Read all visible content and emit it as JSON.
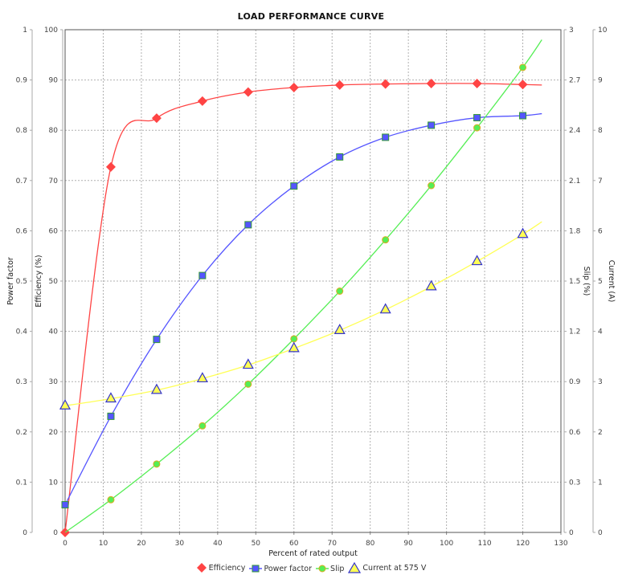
{
  "chart_data": {
    "type": "line",
    "title": "LOAD PERFORMANCE CURVE",
    "xlabel": "Percent of rated output",
    "xlim": [
      0,
      130
    ],
    "xticks": [
      0,
      10,
      20,
      30,
      40,
      50,
      60,
      70,
      80,
      90,
      100,
      110,
      120,
      130
    ],
    "grid": true,
    "legend_position": "bottom",
    "axes": {
      "power_factor": {
        "label": "Power factor",
        "side": "left-outer",
        "range": [
          0,
          1
        ],
        "ticks": [
          "0",
          "0.1",
          "0.2",
          "0.3",
          "0.4",
          "0.5",
          "0.6",
          "0.7",
          "0.8",
          "0.9",
          "1"
        ]
      },
      "efficiency": {
        "label": "Efficiency (%)",
        "side": "left-inner",
        "range": [
          0,
          100
        ],
        "ticks": [
          "0",
          "10",
          "20",
          "30",
          "40",
          "50",
          "60",
          "70",
          "80",
          "90",
          "100"
        ]
      },
      "slip": {
        "label": "Slip (%)",
        "side": "right-inner",
        "range": [
          0,
          3
        ],
        "ticks": [
          "0",
          "0.3",
          "0.6",
          "0.9",
          "1.2",
          "1.5",
          "1.8",
          "2.1",
          "2.4",
          "2.7",
          "3"
        ]
      },
      "current": {
        "label": "Current (A)",
        "side": "right-outer",
        "range": [
          0,
          10
        ],
        "ticks": [
          "0",
          "1",
          "2",
          "3",
          "4",
          "5",
          "6",
          "7",
          "8",
          "9",
          "10"
        ]
      }
    },
    "series": [
      {
        "name": "Efficiency",
        "axis": "efficiency",
        "color": "#ff4444",
        "marker": "diamond",
        "x": [
          0,
          12,
          24,
          36,
          48,
          60,
          72,
          84,
          96,
          108,
          120
        ],
        "values": [
          0,
          72.7,
          82.4,
          85.8,
          87.6,
          88.5,
          89.0,
          89.2,
          89.3,
          89.3,
          89.1
        ],
        "curve_end": {
          "x": 125,
          "y": 89.0
        }
      },
      {
        "name": "Power factor",
        "axis": "power_factor",
        "color": "#5555ff",
        "marker": "square",
        "x": [
          0,
          12,
          24,
          36,
          48,
          60,
          72,
          84,
          96,
          108,
          120
        ],
        "values": [
          0.055,
          0.231,
          0.384,
          0.511,
          0.612,
          0.689,
          0.747,
          0.786,
          0.81,
          0.825,
          0.829
        ],
        "curve_end": {
          "x": 125,
          "y": 0.833
        }
      },
      {
        "name": "Slip",
        "axis": "slip",
        "color": "#55ee55",
        "marker": "circle",
        "x": [
          12,
          24,
          36,
          48,
          60,
          72,
          84,
          96,
          108,
          120
        ],
        "values": [
          0.195,
          0.408,
          0.636,
          0.885,
          1.155,
          1.44,
          1.746,
          2.07,
          2.415,
          2.775
        ],
        "curve_end": {
          "x": 125,
          "y": 2.94
        }
      },
      {
        "name": "Current at 575 V",
        "axis": "current",
        "color": "#ffff55",
        "marker": "triangle",
        "x": [
          0,
          12,
          24,
          36,
          48,
          60,
          72,
          84,
          96,
          108,
          120
        ],
        "values": [
          2.52,
          2.66,
          2.83,
          3.06,
          3.33,
          3.66,
          4.02,
          4.43,
          4.89,
          5.39,
          5.93
        ],
        "curve_end": {
          "x": 125,
          "y": 6.18
        }
      }
    ]
  },
  "legend": {
    "items": [
      {
        "label": "Efficiency"
      },
      {
        "label": "Power factor"
      },
      {
        "label": "Slip"
      },
      {
        "label": "Current at 575 V"
      }
    ]
  }
}
